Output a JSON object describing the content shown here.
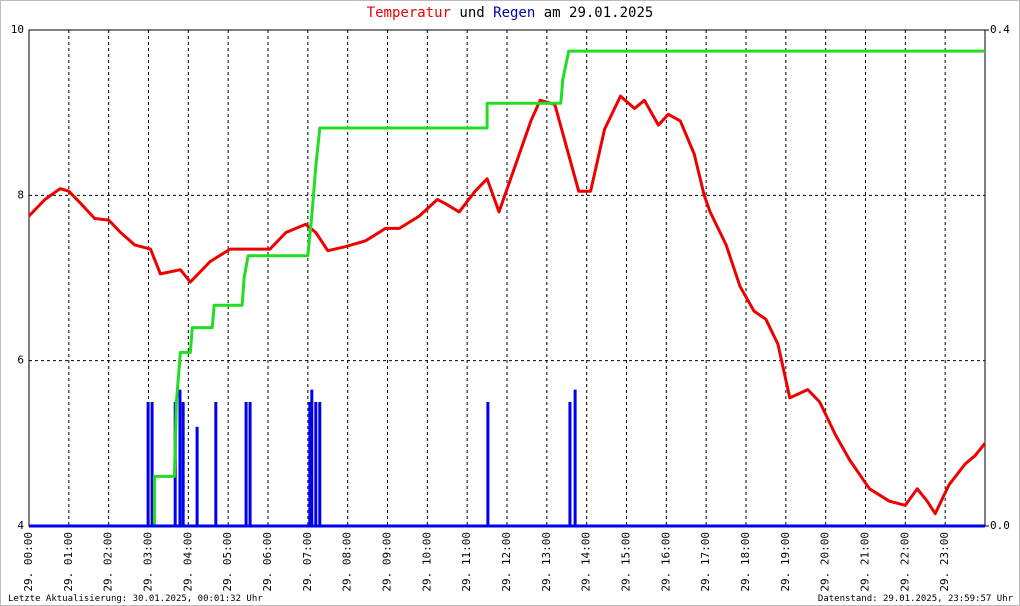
{
  "chart_data": {
    "type": "line",
    "title": [
      "Temperatur",
      "und",
      "Regen",
      "am 29.01.2025"
    ],
    "footer_left": "Letzte Aktualisierung: 30.01.2025, 00:01:32 Uhr",
    "footer_right": "Datenstand: 29.01.2025, 23:59:57 Uhr",
    "xlim": [
      0,
      24
    ],
    "xticks": [
      {
        "value": 0,
        "label": "29. 00:00"
      },
      {
        "value": 1,
        "label": "29. 01:00"
      },
      {
        "value": 2,
        "label": "29. 02:00"
      },
      {
        "value": 3,
        "label": "29. 03:00"
      },
      {
        "value": 4,
        "label": "29. 04:00"
      },
      {
        "value": 5,
        "label": "29. 05:00"
      },
      {
        "value": 6,
        "label": "29. 06:00"
      },
      {
        "value": 7,
        "label": "29. 07:00"
      },
      {
        "value": 8,
        "label": "29. 08:00"
      },
      {
        "value": 9,
        "label": "29. 09:00"
      },
      {
        "value": 10,
        "label": "29. 10:00"
      },
      {
        "value": 11,
        "label": "29. 11:00"
      },
      {
        "value": 12,
        "label": "29. 12:00"
      },
      {
        "value": 13,
        "label": "29. 13:00"
      },
      {
        "value": 14,
        "label": "29. 14:00"
      },
      {
        "value": 15,
        "label": "29. 15:00"
      },
      {
        "value": 16,
        "label": "29. 16:00"
      },
      {
        "value": 17,
        "label": "29. 17:00"
      },
      {
        "value": 18,
        "label": "29. 18:00"
      },
      {
        "value": 19,
        "label": "29. 19:00"
      },
      {
        "value": 20,
        "label": "29. 20:00"
      },
      {
        "value": 21,
        "label": "29. 21:00"
      },
      {
        "value": 22,
        "label": "29. 22:00"
      },
      {
        "value": 23,
        "label": "29. 23:00"
      }
    ],
    "ylim": [
      4,
      10
    ],
    "yticks": [
      4,
      6,
      8,
      10
    ],
    "y2lim": [
      0,
      0.4
    ],
    "y2ticks": [
      {
        "value": 0,
        "label": "0.0"
      },
      0.4
    ],
    "grid": true,
    "series": [
      {
        "name": "Temperatur",
        "type": "line",
        "color": "#ee0000",
        "x": [
          0,
          0.4,
          0.78,
          1.0,
          1.3,
          1.65,
          2.0,
          2.3,
          2.65,
          3.05,
          3.3,
          3.8,
          4.05,
          4.55,
          5.05,
          5.4,
          6.05,
          6.45,
          6.95,
          7.2,
          7.5,
          7.95,
          8.45,
          8.95,
          9.3,
          9.8,
          10.25,
          10.45,
          10.8,
          11.2,
          11.5,
          11.8,
          12.2,
          12.6,
          12.83,
          13.2,
          13.8,
          14.1,
          14.45,
          14.85,
          15.2,
          15.45,
          15.8,
          16.05,
          16.35,
          16.7,
          16.95,
          17.1,
          17.5,
          17.85,
          18.2,
          18.5,
          18.8,
          19.1,
          19.55,
          19.85,
          20.25,
          20.6,
          21.1,
          21.6,
          22.0,
          22.3,
          22.55,
          22.75,
          23.1,
          23.5,
          23.75,
          24
        ],
        "values": [
          7.75,
          7.95,
          8.08,
          8.05,
          7.9,
          7.72,
          7.7,
          7.55,
          7.4,
          7.35,
          7.05,
          7.1,
          6.95,
          7.2,
          7.35,
          7.35,
          7.35,
          7.55,
          7.65,
          7.55,
          7.33,
          7.38,
          7.45,
          7.6,
          7.6,
          7.75,
          7.95,
          7.9,
          7.8,
          8.05,
          8.2,
          7.8,
          8.35,
          8.9,
          9.15,
          9.1,
          8.05,
          8.05,
          8.8,
          9.2,
          9.05,
          9.15,
          8.85,
          8.98,
          8.9,
          8.5,
          8.0,
          7.8,
          7.4,
          6.9,
          6.6,
          6.5,
          6.2,
          5.55,
          5.65,
          5.5,
          5.1,
          4.8,
          4.45,
          4.3,
          4.25,
          4.45,
          4.3,
          4.15,
          4.5,
          4.75,
          4.85,
          5.0
        ]
      },
      {
        "type": "line",
        "axis": "y2",
        "color": "#22dd22",
        "x": [
          0,
          3.15,
          3.15,
          3.65,
          3.7,
          3.8,
          4.05,
          4.1,
          4.6,
          4.65,
          5.35,
          5.4,
          5.5,
          7.0,
          7.1,
          7.2,
          7.3,
          11.5,
          11.5,
          13.35,
          13.4,
          13.55,
          24
        ],
        "values": [
          0,
          0,
          0.04,
          0.04,
          0.1,
          0.14,
          0.14,
          0.16,
          0.16,
          0.178,
          0.178,
          0.2,
          0.218,
          0.218,
          0.25,
          0.29,
          0.321,
          0.321,
          0.341,
          0.341,
          0.36,
          0.383,
          0.383
        ]
      },
      {
        "name": "Regen",
        "type": "bar",
        "axis": "y2",
        "color": "#0000ee",
        "x": [
          2.99,
          3.09,
          3.67,
          3.79,
          3.87,
          4.22,
          4.69,
          5.45,
          5.55,
          7.05,
          7.1,
          7.2,
          7.3,
          11.52,
          13.58,
          13.71
        ],
        "values": [
          0.1,
          0.1,
          0.1,
          0.11,
          0.1,
          0.08,
          0.1,
          0.1,
          0.1,
          0.1,
          0.11,
          0.1,
          0.1,
          0.1,
          0.1,
          0.11
        ]
      }
    ]
  }
}
